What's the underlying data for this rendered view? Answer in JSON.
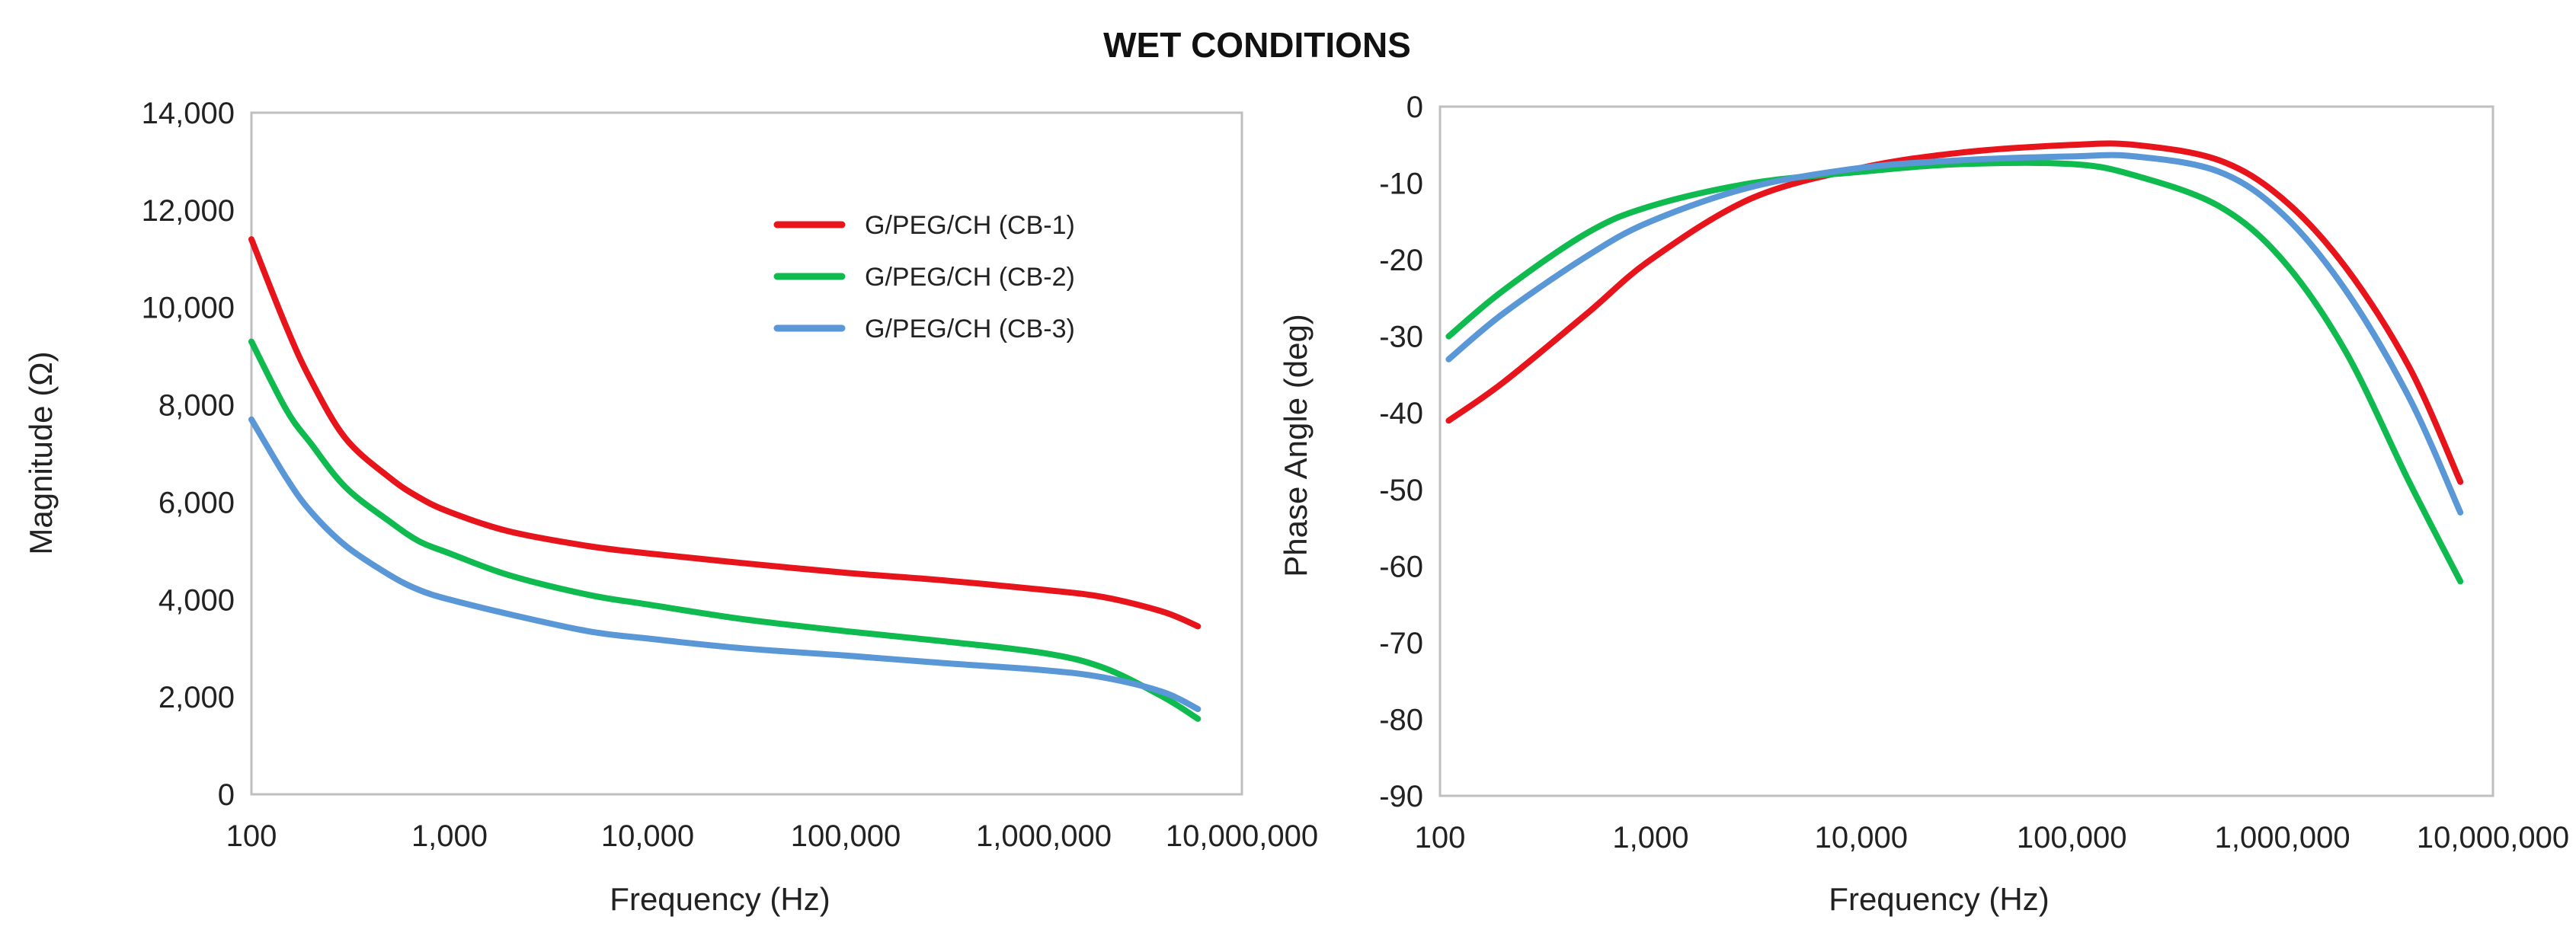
{
  "figure_title": "WET CONDITIONS",
  "chart_data": [
    {
      "type": "line",
      "title": "",
      "xlabel": "Frequency (Hz)",
      "ylabel": "Magnitude (Ω)",
      "xscale": "log",
      "xlim": [
        100,
        10000000
      ],
      "ylim": [
        0,
        14000
      ],
      "xticks": [
        100,
        1000,
        10000,
        100000,
        1000000,
        10000000
      ],
      "xtick_labels": [
        "100",
        "1,000",
        "10,000",
        "100,000",
        "1,000,000",
        "10,000,000"
      ],
      "yticks": [
        0,
        2000,
        4000,
        6000,
        8000,
        10000,
        12000,
        14000
      ],
      "ytick_labels": [
        "0",
        "2,000",
        "4,000",
        "6,000",
        "8,000",
        "10,000",
        "12,000",
        "14,000"
      ],
      "legend_position": "top-right",
      "series": [
        {
          "name": "G/PEG/CH (CB-1)",
          "color": "#e8141b",
          "x": [
            100,
            150,
            200,
            300,
            500,
            700,
            1000,
            2000,
            5000,
            10000,
            30000,
            100000,
            300000,
            1000000,
            2000000,
            4000000,
            6000000
          ],
          "y": [
            11400,
            9600,
            8500,
            7300,
            6500,
            6100,
            5800,
            5400,
            5100,
            4950,
            4750,
            4550,
            4400,
            4200,
            4050,
            3750,
            3450
          ]
        },
        {
          "name": "G/PEG/CH (CB-2)",
          "color": "#0fba4f",
          "x": [
            100,
            150,
            200,
            300,
            500,
            700,
            1000,
            2000,
            5000,
            10000,
            30000,
            100000,
            300000,
            1000000,
            2000000,
            4000000,
            6000000
          ],
          "y": [
            9300,
            7900,
            7200,
            6300,
            5600,
            5200,
            4950,
            4500,
            4100,
            3900,
            3600,
            3350,
            3150,
            2900,
            2600,
            2000,
            1550
          ]
        },
        {
          "name": "G/PEG/CH (CB-3)",
          "color": "#5a97d6",
          "x": [
            100,
            150,
            200,
            300,
            500,
            700,
            1000,
            2000,
            5000,
            10000,
            30000,
            100000,
            300000,
            1000000,
            2000000,
            4000000,
            6000000
          ],
          "y": [
            7700,
            6500,
            5800,
            5100,
            4500,
            4200,
            4000,
            3700,
            3350,
            3200,
            3000,
            2850,
            2700,
            2550,
            2400,
            2100,
            1750
          ]
        }
      ]
    },
    {
      "type": "line",
      "title": "",
      "xlabel": "Frequency (Hz)",
      "ylabel": "Phase Angle (deg)",
      "xscale": "log",
      "xlim": [
        100,
        10000000
      ],
      "ylim": [
        -90,
        0
      ],
      "xticks": [
        100,
        1000,
        10000,
        100000,
        1000000,
        10000000
      ],
      "xtick_labels": [
        "100",
        "1,000",
        "10,000",
        "100,000",
        "1,000,000",
        "10,000,000"
      ],
      "yticks": [
        0,
        -10,
        -20,
        -30,
        -40,
        -50,
        -60,
        -70,
        -80,
        -90
      ],
      "ytick_labels": [
        "0",
        "-10",
        "-20",
        "-30",
        "-40",
        "-50",
        "-60",
        "-70",
        "-80",
        "-90"
      ],
      "series": [
        {
          "name": "G/PEG/CH (CB-1)",
          "color": "#e8141b",
          "x": [
            110,
            200,
            500,
            1000,
            3000,
            10000,
            30000,
            100000,
            200000,
            500000,
            1000000,
            2000000,
            4000000,
            7000000
          ],
          "y": [
            -41,
            -36,
            -27,
            -20,
            -12,
            -8,
            -6,
            -5,
            -5,
            -7,
            -12,
            -21,
            -34,
            -49
          ]
        },
        {
          "name": "G/PEG/CH (CB-2)",
          "color": "#0fba4f",
          "x": [
            110,
            200,
            500,
            1000,
            3000,
            10000,
            30000,
            100000,
            200000,
            500000,
            1000000,
            2000000,
            4000000,
            7000000
          ],
          "y": [
            -30,
            -24,
            -16.5,
            -13,
            -10,
            -8.5,
            -7.5,
            -7.5,
            -9,
            -13,
            -20,
            -32,
            -49,
            -62
          ]
        },
        {
          "name": "G/PEG/CH (CB-3)",
          "color": "#5a97d6",
          "x": [
            110,
            200,
            500,
            1000,
            3000,
            10000,
            30000,
            100000,
            200000,
            500000,
            1000000,
            2000000,
            4000000,
            7000000
          ],
          "y": [
            -33,
            -27,
            -19.5,
            -15,
            -10.5,
            -8,
            -7,
            -6.5,
            -6.5,
            -8.5,
            -14,
            -24,
            -38,
            -53
          ]
        }
      ]
    }
  ]
}
